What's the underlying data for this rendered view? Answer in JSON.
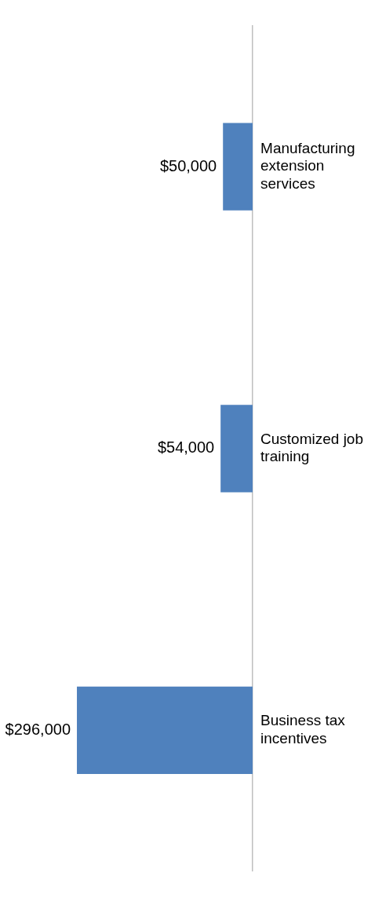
{
  "chart_data": {
    "type": "bar",
    "orientation": "horizontal",
    "categories": [
      "Manufacturing extension services",
      "Customized job training",
      "Business tax incentives"
    ],
    "values": [
      50000,
      54000,
      296000
    ],
    "color": "#4f81bd",
    "value_labels": [
      "$50,000",
      "$54,000",
      "$296,000"
    ]
  }
}
